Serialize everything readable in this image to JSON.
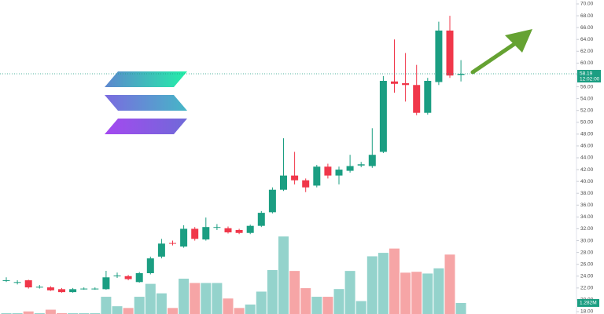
{
  "chart_data": {
    "type": "candlestick",
    "open": [
      23.3,
      22.9,
      23.3,
      22.1,
      22.1,
      21.8,
      21.3,
      21.8,
      21.8,
      21.8,
      24.0,
      24.0,
      23.0,
      24.5,
      27.3,
      29.6,
      29.0,
      32.0,
      30.2,
      32.2,
      32.1,
      31.8,
      31.3,
      32.5,
      34.8,
      38.6,
      41.0,
      40.2,
      39.3,
      42.5,
      41.0,
      41.8,
      42.7,
      42.6,
      45.0,
      56.9,
      56.6,
      56.3,
      51.6,
      56.8,
      65.5,
      58.0
    ],
    "high": [
      23.8,
      23.3,
      23.4,
      22.5,
      22.3,
      22.0,
      22.0,
      22.1,
      22.1,
      24.9,
      24.6,
      24.2,
      24.7,
      27.3,
      30.3,
      30.0,
      32.6,
      32.3,
      33.9,
      32.8,
      32.4,
      32.0,
      32.7,
      35.0,
      39.0,
      47.3,
      45.0,
      40.5,
      42.8,
      43.0,
      42.5,
      44.5,
      43.3,
      49.0,
      57.8,
      64.0,
      61.7,
      59.7,
      57.5,
      67.0,
      68.0,
      60.5
    ],
    "low": [
      23.0,
      22.6,
      21.9,
      21.9,
      21.5,
      21.2,
      21.2,
      21.7,
      21.7,
      21.7,
      23.7,
      23.3,
      22.9,
      24.3,
      27.0,
      29.2,
      28.8,
      30.0,
      30.0,
      31.8,
      31.2,
      31.1,
      31.1,
      32.3,
      34.6,
      38.4,
      39.5,
      38.2,
      39.0,
      40.5,
      39.5,
      41.5,
      42.4,
      42.3,
      44.8,
      55.0,
      53.5,
      51.2,
      51.3,
      56.3,
      57.5,
      56.9
    ],
    "close": [
      23.3,
      23.0,
      22.1,
      22.2,
      21.6,
      21.3,
      21.8,
      21.9,
      21.9,
      23.8,
      24.1,
      23.5,
      24.5,
      27.0,
      29.5,
      29.5,
      32.0,
      30.3,
      32.3,
      32.3,
      31.4,
      31.3,
      32.5,
      34.7,
      38.6,
      41.0,
      40.2,
      39.0,
      42.5,
      41.0,
      42.0,
      42.6,
      42.9,
      44.5,
      57.0,
      56.5,
      56.3,
      51.6,
      57.0,
      65.5,
      57.9,
      58.19
    ],
    "volume": [
      0.1,
      0.1,
      0.3,
      0.1,
      0.5,
      0.1,
      0.1,
      0.1,
      0.1,
      2.0,
      0.9,
      0.7,
      2.0,
      3.5,
      2.4,
      0.7,
      4.1,
      3.6,
      3.6,
      3.6,
      1.8,
      0.7,
      1.1,
      2.6,
      5.1,
      9.0,
      5.0,
      3.0,
      2.0,
      2.0,
      2.9,
      5.0,
      1.5,
      6.7,
      7.1,
      7.6,
      4.8,
      4.9,
      4.7,
      5.3,
      6.9,
      1.282
    ],
    "last_volume_label": "1.282M",
    "last_price": 58.19,
    "countdown": "12:02:00",
    "ylim": [
      18,
      70
    ],
    "y2lim": [
      0,
      36
    ],
    "yticks": [
      {
        "value": 18,
        "label": "18.00"
      },
      {
        "value": 20,
        "label": "20.00"
      },
      {
        "value": 22,
        "label": "22.00"
      },
      {
        "value": 24,
        "label": "24.00"
      },
      {
        "value": 26,
        "label": "26.00"
      },
      {
        "value": 28,
        "label": "28.00"
      },
      {
        "value": 30,
        "label": "30.00"
      },
      {
        "value": 32,
        "label": "32.00"
      },
      {
        "value": 34,
        "label": "34.00"
      },
      {
        "value": 36,
        "label": "36.00"
      },
      {
        "value": 38,
        "label": "38.00"
      },
      {
        "value": 40,
        "label": "40.00"
      },
      {
        "value": 42,
        "label": "42.00"
      },
      {
        "value": 44,
        "label": "44.00"
      },
      {
        "value": 46,
        "label": "46.00"
      },
      {
        "value": 48,
        "label": "48.00"
      },
      {
        "value": 50,
        "label": "50.00"
      },
      {
        "value": 52,
        "label": "52.00"
      },
      {
        "value": 54,
        "label": "54.00"
      },
      {
        "value": 56,
        "label": "56.00"
      },
      {
        "value": 58,
        "label": "58.00"
      },
      {
        "value": 60,
        "label": "60.00"
      },
      {
        "value": 62,
        "label": "62.00"
      },
      {
        "value": 64,
        "label": "64.00"
      },
      {
        "value": 66,
        "label": "66.00"
      },
      {
        "value": 68,
        "label": "68.00"
      },
      {
        "value": 70,
        "label": "70.00"
      }
    ],
    "grid": false,
    "up_color": "#1b9e82",
    "down_color": "#f0374a",
    "up_volume_color": "#94d3cc",
    "down_volume_color": "#f6a5a6"
  }
}
